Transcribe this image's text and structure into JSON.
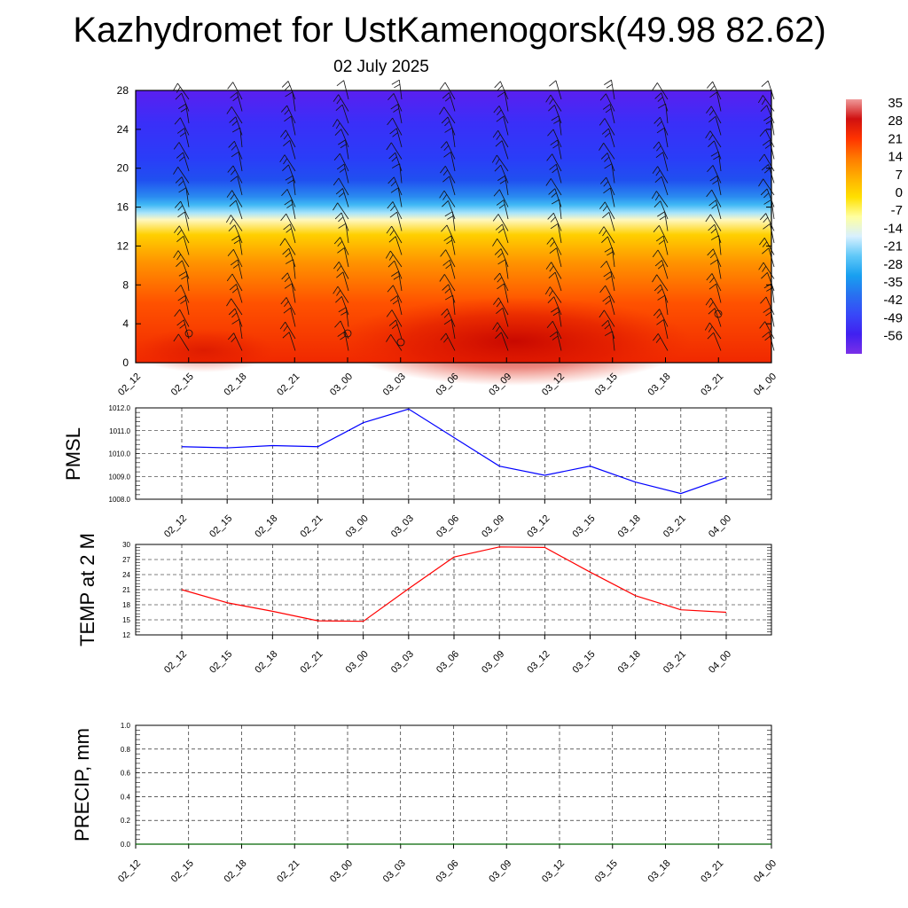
{
  "title": "Kazhydromet for UstKamenogorsk(49.98 82.62)",
  "subtitle": "02 July 2025",
  "chart_data": [
    {
      "type": "heatmap",
      "x_ticks": [
        "02_12",
        "02_15",
        "02_18",
        "02_21",
        "03_00",
        "03_03",
        "03_06",
        "03_09",
        "03_12",
        "03_15",
        "03_18",
        "03_21",
        "04_00"
      ],
      "y_ticks": [
        0,
        4,
        8,
        12,
        16,
        20,
        24,
        28
      ],
      "ylim": [
        0,
        28
      ],
      "colorbar": {
        "labels": [
          "35",
          "28",
          "21",
          "14",
          "7",
          "0",
          "-7",
          "-14",
          "-21",
          "-28",
          "-35",
          "-42",
          "-49",
          "-56"
        ],
        "stops": [
          "#ef9a9a",
          "#d01010",
          "#ff3300",
          "#ff7a00",
          "#ffb000",
          "#ffe000",
          "#ffffa0",
          "#d8f0ff",
          "#60c8f8",
          "#18a0f0",
          "#2870f0",
          "#3848f8",
          "#4020f0",
          "#7a2fe8"
        ]
      }
    },
    {
      "type": "line",
      "ylabel": "PMSL",
      "x": [
        "02_12",
        "02_15",
        "02_18",
        "02_21",
        "03_00",
        "03_03",
        "03_06",
        "03_09",
        "03_12",
        "03_15",
        "03_18",
        "03_21",
        "04_00"
      ],
      "ylim": [
        1008.0,
        1012.0
      ],
      "y_ticks": [
        "1008.0",
        "1009.0",
        "1010.0",
        "1011.0",
        "1012.0"
      ],
      "series": [
        {
          "values": [
            1010.3,
            1010.25,
            1010.35,
            1010.3,
            1011.35,
            1011.95,
            1010.7,
            1009.45,
            1009.05,
            1009.45,
            1008.75,
            1008.25,
            1008.95
          ],
          "color": "#0000ff"
        }
      ]
    },
    {
      "type": "line",
      "ylabel": "TEMP at 2 M",
      "x": [
        "02_12",
        "02_15",
        "02_18",
        "02_21",
        "03_00",
        "03_03",
        "03_06",
        "03_09",
        "03_12",
        "03_15",
        "03_18",
        "03_21",
        "04_00"
      ],
      "ylim": [
        12,
        30
      ],
      "y_ticks": [
        "12",
        "15",
        "18",
        "21",
        "24",
        "27",
        "30"
      ],
      "series": [
        {
          "values": [
            21.0,
            18.4,
            16.7,
            14.8,
            14.7,
            21.2,
            27.5,
            29.5,
            29.4,
            24.5,
            19.8,
            17.0,
            16.5
          ],
          "color": "#ff0000"
        }
      ]
    },
    {
      "type": "line",
      "ylabel": "PRECIP, mm",
      "x": [
        "02_12",
        "02_15",
        "02_18",
        "02_21",
        "03_00",
        "03_03",
        "03_06",
        "03_09",
        "03_12",
        "03_15",
        "03_18",
        "03_21",
        "04_00"
      ],
      "ylim": [
        0.0,
        1.0
      ],
      "y_ticks": [
        "0.0",
        "0.2",
        "0.4",
        "0.6",
        "0.8",
        "1.0"
      ],
      "series": [
        {
          "values": [
            0,
            0,
            0,
            0,
            0,
            0,
            0,
            0,
            0,
            0,
            0,
            0,
            0
          ],
          "color": "#006400"
        }
      ]
    }
  ]
}
